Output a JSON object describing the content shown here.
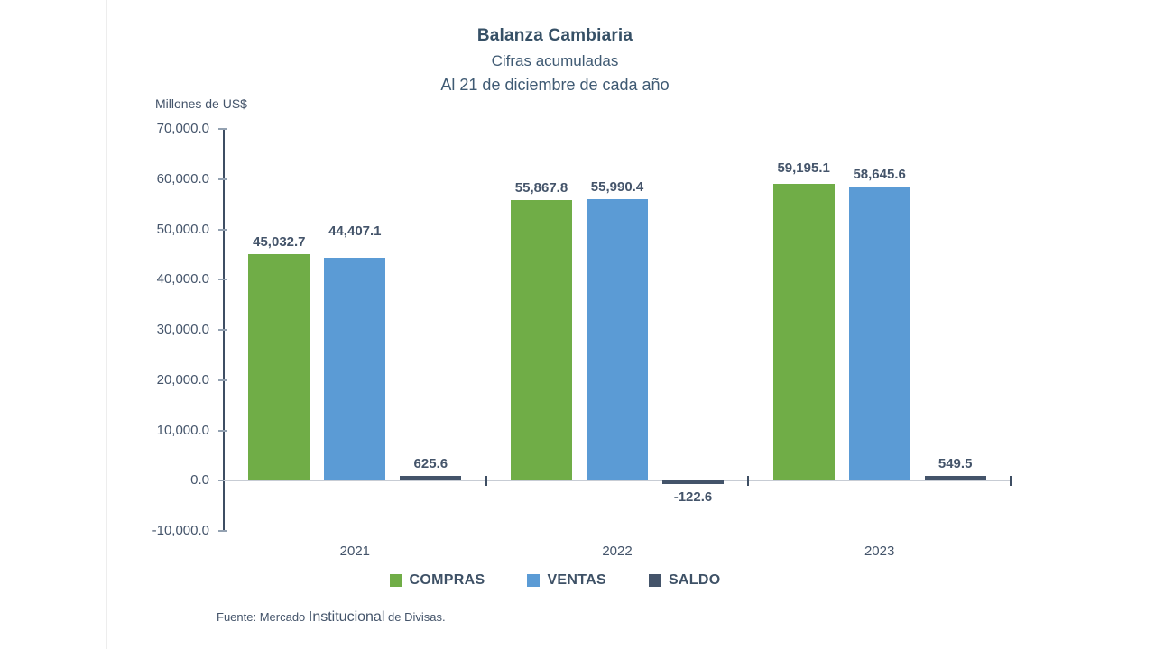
{
  "title": "Balanza Cambiaria",
  "subtitle1": "Cifras acumuladas",
  "subtitle2": "Al 21 de diciembre de cada año",
  "source": {
    "prefix": "Fuente: Mercado ",
    "mid": "Institucional",
    "suffix": " de Divisas."
  },
  "colors": {
    "compras": "#70AD47",
    "ventas": "#5B9BD5",
    "saldo": "#44546A",
    "text": "#44546A",
    "axis_line": "#3E4E63",
    "zero_line": "#C7CCD4",
    "tick": "#93A1B1"
  },
  "chart_data": {
    "type": "bar",
    "title": "Balanza Cambiaria",
    "subtitle": "Cifras acumuladas — Al 21 de diciembre de cada año",
    "ylabel": "Millones de US$",
    "xlabel": "",
    "categories": [
      "2021",
      "2022",
      "2023"
    ],
    "series": [
      {
        "name": "COMPRAS",
        "color": "#70AD47",
        "values": [
          45032.7,
          55867.8,
          59195.1
        ],
        "labels": [
          "45,032.7",
          "55,867.8",
          "59,195.1"
        ]
      },
      {
        "name": "VENTAS",
        "color": "#5B9BD5",
        "values": [
          44407.1,
          55990.4,
          58645.6
        ],
        "labels": [
          "44,407.1",
          "55,990.4",
          "58,645.6"
        ]
      },
      {
        "name": "SALDO",
        "color": "#44546A",
        "values": [
          625.6,
          -122.6,
          549.5
        ],
        "labels": [
          "625.6",
          "-122.6",
          "549.5"
        ]
      }
    ],
    "ylim": [
      -10000,
      70000
    ],
    "ytick_step": 10000,
    "yticks": [
      70000,
      60000,
      50000,
      40000,
      30000,
      20000,
      10000,
      0,
      -10000
    ],
    "ytick_labels": [
      "70,000.0",
      "60,000.0",
      "50,000.0",
      "40,000.0",
      "30,000.0",
      "20,000.0",
      "10,000.0",
      "0.0",
      "-10,000.0"
    ],
    "grid": false,
    "legend_position": "bottom",
    "data_labels": true
  }
}
